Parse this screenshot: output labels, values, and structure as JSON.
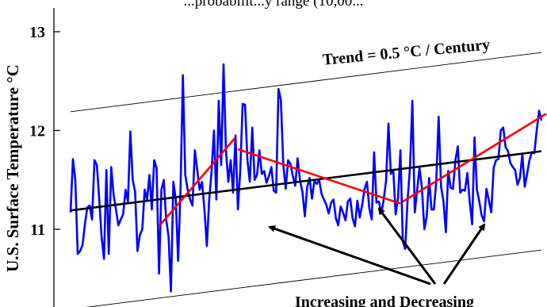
{
  "header_fragment": "...probabilit...y range (10,00...",
  "chart_data": {
    "type": "line",
    "title": "",
    "xlabel": "",
    "ylabel": "U.S. Surface Temperature °C",
    "ylim": [
      10.45,
      13.12
    ],
    "yticks": [
      11,
      12,
      13
    ],
    "grid": false,
    "x_index_range": [
      0,
      199
    ],
    "series": [
      {
        "name": "",
        "color": "#0000ff",
        "values": [
          11.17,
          11.71,
          11.5,
          10.75,
          10.78,
          10.84,
          11.05,
          11.22,
          11.24,
          11.1,
          11.7,
          11.65,
          11.3,
          10.92,
          10.7,
          11.6,
          10.75,
          11.63,
          11.35,
          11.2,
          11.04,
          11.1,
          11.15,
          11.4,
          11.28,
          11.99,
          11.5,
          11.38,
          10.78,
          10.94,
          11.0,
          11.4,
          11.3,
          11.55,
          11.2,
          11.7,
          11.62,
          10.55,
          11.4,
          11.5,
          11.1,
          10.93,
          10.37,
          11.48,
          11.3,
          10.68,
          11.4,
          12.56,
          11.55,
          11.4,
          11.3,
          11.24,
          11.8,
          11.6,
          11.4,
          11.48,
          11.2,
          10.83,
          11.3,
          11.59,
          12.0,
          11.3,
          12.3,
          11.65,
          12.67,
          11.8,
          11.48,
          11.7,
          11.37,
          11.95,
          11.2,
          11.6,
          12.27,
          12.26,
          11.7,
          11.48,
          12.03,
          11.5,
          11.55,
          11.8,
          11.56,
          11.59,
          11.47,
          11.54,
          11.63,
          11.39,
          11.37,
          12.42,
          12.31,
          11.65,
          11.41,
          11.7,
          11.66,
          11.54,
          11.44,
          11.72,
          11.49,
          11.38,
          11.13,
          11.43,
          11.52,
          11.31,
          11.49,
          11.46,
          11.5,
          11.36,
          11.3,
          11.25,
          11.16,
          11.27,
          11.3,
          11.11,
          11.04,
          11.23,
          11.17,
          11.09,
          11.28,
          11.31,
          11.11,
          11.03,
          11.29,
          11.12,
          11.25,
          11.41,
          11.48,
          11.21,
          11.1,
          11.78,
          11.27,
          11.28,
          11.16,
          11.3,
          11.49,
          12.07,
          11.56,
          11.6,
          11.15,
          11.32,
          11.8,
          10.88,
          10.8,
          11.29,
          11.63,
          12.3,
          11.17,
          11.4,
          11.62,
          11.42,
          11.0,
          11.13,
          11.52,
          11.2,
          11.2,
          11.48,
          12.14,
          11.43,
          11.28,
          10.97,
          11.59,
          11.42,
          11.41,
          11.7,
          11.84,
          11.37,
          11.4,
          11.39,
          11.57,
          11.28,
          11.05,
          11.93,
          11.4,
          11.28,
          11.14,
          11.08,
          11.41,
          11.29,
          11.17,
          11.62,
          11.7,
          11.71,
          12.0,
          12.03,
          11.83,
          11.79,
          11.67,
          11.63,
          11.6,
          11.45,
          11.52,
          11.76,
          11.43,
          11.56,
          11.7,
          11.78,
          11.77,
          12.0,
          12.2,
          12.1
        ]
      }
    ],
    "trend_line": {
      "label": "Trend = 0.5 °C / Century",
      "start": 11.19,
      "end": 11.79
    },
    "band_offset": 1.0,
    "segments": [
      {
        "from_index": 37,
        "from_value": 11.03,
        "to_index": 69,
        "to_value": 11.93
      },
      {
        "from_index": 70,
        "from_value": 11.81,
        "to_index": 138,
        "to_value": 11.26
      },
      {
        "from_index": 139,
        "from_value": 11.28,
        "to_index": 199,
        "to_value": 12.17
      }
    ],
    "annotation": "Increasing and Decreasing"
  }
}
